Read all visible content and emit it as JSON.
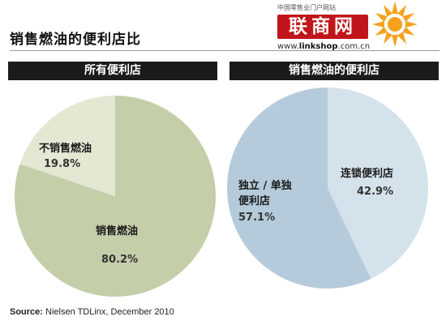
{
  "title": "销售燃油的便利店比",
  "logo": {
    "tagline": "中国零售业门户网站",
    "mark": "联商网",
    "url_prefix": "www.",
    "url_main": "linkshop",
    "url_suffix": ".com.cn"
  },
  "source": {
    "label": "Source:",
    "text": " Nielsen TDLinx, December 2010"
  },
  "colors": {
    "left_large": "#c4cea9",
    "left_small": "#e4e8d3",
    "right_large": "#b5cbdb",
    "right_small": "#d4e2ec"
  },
  "chart_data": [
    {
      "type": "pie",
      "title": "所有便利店",
      "slices": [
        {
          "label": "不销售燃油",
          "value": 19.8,
          "display": "19.8%"
        },
        {
          "label": "销售燃油",
          "value": 80.2,
          "display": "80.2%"
        }
      ]
    },
    {
      "type": "pie",
      "title": "销售燃油的便利店",
      "slices": [
        {
          "label": "连锁便利店",
          "value": 42.9,
          "display": "42.9%"
        },
        {
          "label_lines": [
            "独立 / 单独",
            "便利店"
          ],
          "value": 57.1,
          "display": "57.1%"
        }
      ]
    }
  ]
}
